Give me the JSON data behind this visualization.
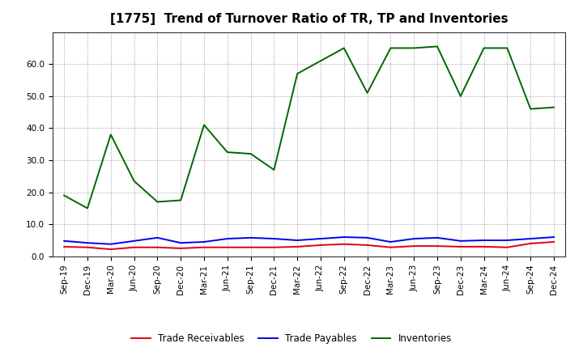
{
  "title": "[1775]  Trend of Turnover Ratio of TR, TP and Inventories",
  "x_labels": [
    "Sep-19",
    "Dec-19",
    "Mar-20",
    "Jun-20",
    "Sep-20",
    "Dec-20",
    "Mar-21",
    "Jun-21",
    "Sep-21",
    "Dec-21",
    "Mar-22",
    "Jun-22",
    "Sep-22",
    "Dec-22",
    "Mar-23",
    "Jun-23",
    "Sep-23",
    "Dec-23",
    "Mar-24",
    "Jun-24",
    "Sep-24",
    "Dec-24"
  ],
  "trade_receivables": [
    3.0,
    2.8,
    2.2,
    2.8,
    2.8,
    2.5,
    2.8,
    2.8,
    2.8,
    2.8,
    3.0,
    3.5,
    3.8,
    3.5,
    2.8,
    3.2,
    3.2,
    3.0,
    3.0,
    2.8,
    4.0,
    4.5
  ],
  "trade_payables": [
    4.8,
    4.2,
    3.8,
    4.8,
    5.8,
    4.2,
    4.5,
    5.5,
    5.8,
    5.5,
    5.0,
    5.5,
    6.0,
    5.8,
    4.5,
    5.5,
    5.8,
    4.8,
    5.0,
    5.0,
    5.5,
    6.0
  ],
  "inventories": [
    19.0,
    15.0,
    38.0,
    23.5,
    17.0,
    17.5,
    41.0,
    32.5,
    32.0,
    27.0,
    57.0,
    61.0,
    65.0,
    51.0,
    65.0,
    65.0,
    65.5,
    50.0,
    65.0,
    65.0,
    46.0,
    46.5
  ],
  "line_colors": {
    "trade_receivables": "#e00010",
    "trade_payables": "#0000ee",
    "inventories": "#006600"
  },
  "legend_labels": {
    "trade_receivables": "Trade Receivables",
    "trade_payables": "Trade Payables",
    "inventories": "Inventories"
  },
  "ylim": [
    0.0,
    70.0
  ],
  "yticks": [
    0.0,
    10.0,
    20.0,
    30.0,
    40.0,
    50.0,
    60.0
  ],
  "background_color": "#ffffff",
  "plot_background": "#ffffff",
  "grid_color": "#888888",
  "title_fontsize": 11,
  "tick_fontsize": 7.5,
  "legend_fontsize": 8.5
}
